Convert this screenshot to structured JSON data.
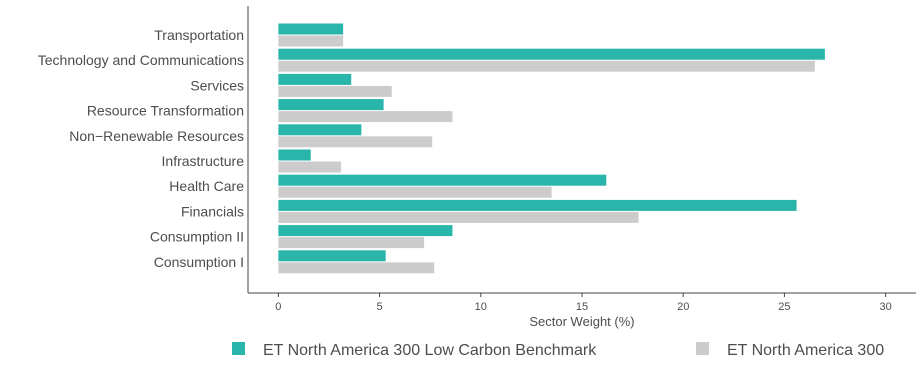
{
  "chart_data": {
    "type": "bar",
    "orientation": "horizontal",
    "categories": [
      "Transportation",
      "Technology and Communications",
      "Services",
      "Resource Transformation",
      "Non−Renewable Resources",
      "Infrastructure",
      "Health Care",
      "Financials",
      "Consumption II",
      "Consumption I"
    ],
    "series": [
      {
        "name": "ET North America 300 Low Carbon Benchmark",
        "color": "#2ab5aa",
        "values": [
          3.2,
          27.0,
          3.6,
          5.2,
          4.1,
          1.6,
          16.2,
          25.6,
          8.6,
          5.3
        ]
      },
      {
        "name": "ET North America 300",
        "color": "#cccccc",
        "values": [
          3.2,
          26.5,
          5.6,
          8.6,
          7.6,
          3.1,
          13.5,
          17.8,
          7.2,
          7.7
        ]
      }
    ],
    "xlabel": "Sector Weight (%)",
    "ylabel": "",
    "xlim": [
      -1.5,
      31.5
    ],
    "xticks": [
      0,
      5,
      10,
      15,
      20,
      25,
      30
    ],
    "grid": false,
    "legend_position": "bottom"
  }
}
